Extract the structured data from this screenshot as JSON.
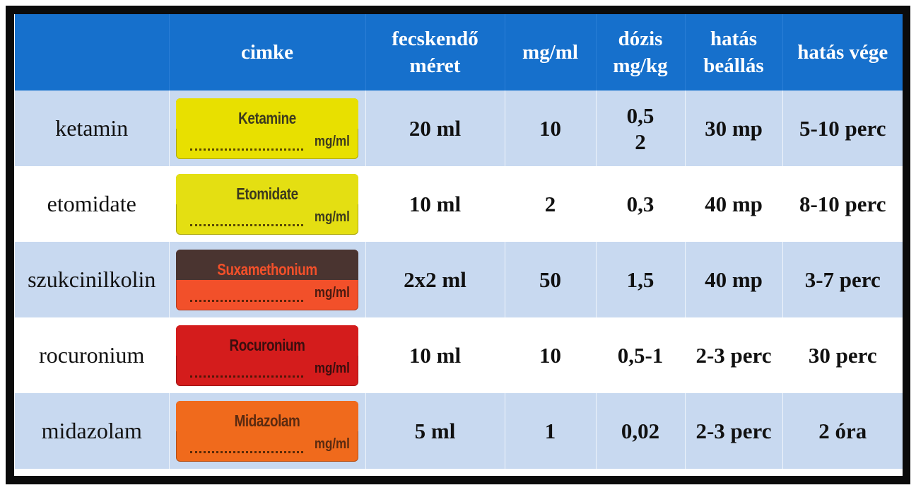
{
  "headers": {
    "name": "",
    "label": "cimke",
    "size": [
      "fecskendő",
      "méret"
    ],
    "mgml": "mg/ml",
    "dose": [
      "dózis",
      "mg/kg"
    ],
    "onset": [
      "hatás",
      "beállás"
    ],
    "end": "hatás vége"
  },
  "rows": [
    {
      "name": "ketamin",
      "label": {
        "text": "Ketamine",
        "unit": "mg/ml",
        "color": "#e8e000",
        "top_color": "#e8e000",
        "text_color": "#3c3a1e"
      },
      "size": "20 ml",
      "mgml": "10",
      "dose": [
        "0,5",
        "2"
      ],
      "onset": "30 mp",
      "end": "5-10 perc"
    },
    {
      "name": "etomidate",
      "label": {
        "text": "Etomidate",
        "unit": "mg/ml",
        "color": "#e4df12",
        "top_color": "#e4df12",
        "text_color": "#3c3a1e"
      },
      "size": "10 ml",
      "mgml": "2",
      "dose": [
        "0,3"
      ],
      "onset": "40 mp",
      "end": "8-10 perc"
    },
    {
      "name": "szukcinilkolin",
      "label": {
        "text": "Suxamethonium",
        "unit": "mg/ml",
        "color": "#f2502a",
        "top_color": "#4a3430",
        "text_color": "#f2502a"
      },
      "size": "2x2 ml",
      "mgml": "50",
      "dose": [
        "1,5"
      ],
      "onset": "40 mp",
      "end": "3-7 perc"
    },
    {
      "name": "rocuronium",
      "label": {
        "text": "Rocuronium",
        "unit": "mg/ml",
        "color": "#d41c1c",
        "top_color": "#d41c1c",
        "text_color": "#3a0e0e"
      },
      "size": "10 ml",
      "mgml": "10",
      "dose": [
        "0,5-1"
      ],
      "onset": "2-3 perc",
      "end": "30 perc"
    },
    {
      "name": "midazolam",
      "label": {
        "text": "Midazolam",
        "unit": "mg/ml",
        "color": "#f06a1c",
        "top_color": "#f06a1c",
        "text_color": "#5a2a10"
      },
      "size": "5 ml",
      "mgml": "1",
      "dose": [
        "0,02"
      ],
      "onset": "2-3 perc",
      "end": "2 óra"
    }
  ]
}
